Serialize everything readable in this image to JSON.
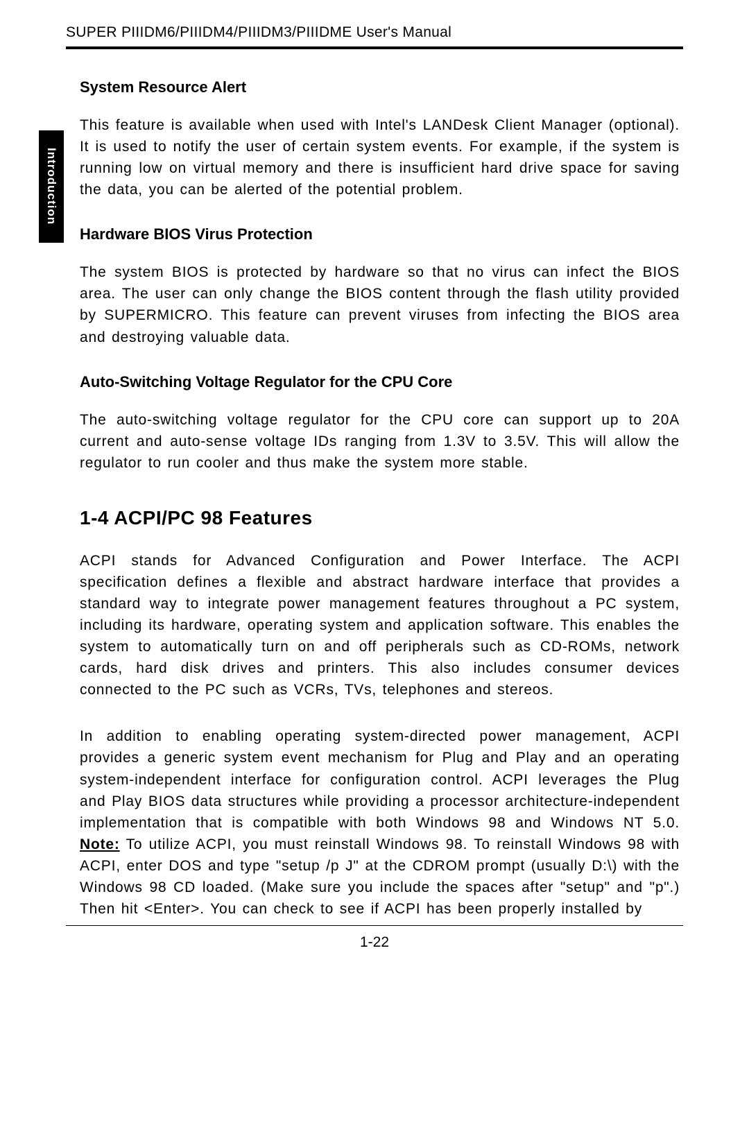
{
  "header": {
    "text": "SUPER PIIIDM6/PIIIDM4/PIIIDM3/PIIIDME User's Manual"
  },
  "sideTab": {
    "label": "Introduction"
  },
  "sections": [
    {
      "heading": "System Resource Alert",
      "body": "This feature is available when used with Intel's LANDesk Client Manager (optional).  It is used to notify the user of certain system events.  For example, if the system is running low on virtual memory and there is insufficient hard drive space for saving the data, you can be alerted of the potential problem."
    },
    {
      "heading": "Hardware BIOS Virus Protection",
      "body": "The system BIOS is protected by hardware so that no virus can infect the BIOS area.  The user can only change the BIOS content through the flash utility provided by SUPERMICRO.  This feature can prevent viruses from infecting the BIOS area and destroying valuable data."
    },
    {
      "heading": "Auto-Switching Voltage Regulator for the CPU Core",
      "body": "The auto-switching voltage regulator for the CPU core can support up to 20A current and auto-sense voltage IDs ranging from 1.3V to 3.5V.  This will allow the regulator to run cooler and thus make the system more stable."
    }
  ],
  "mainSection": {
    "title": "1-4  ACPI/PC 98 Features",
    "para1": "ACPI stands for Advanced Configuration and Power Interface.  The ACPI specification defines a flexible and abstract hardware interface that provides a standard way to integrate power management features throughout a PC system, including its hardware, operating system and application software.  This enables the system to automatically turn on and off peripherals such as CD-ROMs, network cards, hard disk drives and printers.  This also includes consumer devices connected to the PC such as VCRs, TVs, telephones and stereos.",
    "para2_before_note": "In addition to enabling operating system-directed power management, ACPI provides a generic system event mechanism for Plug and Play and an operating system-independent interface for configuration control.  ACPI leverages the Plug and Play BIOS data structures while providing a processor architecture-independent implementation that is compatible with both Windows 98 and Windows NT 5.0.  ",
    "note_label": "Note:",
    "para2_after_note": " To utilize ACPI, you must reinstall Windows 98.  To reinstall Windows 98 with ACPI, enter DOS and type \"setup /p J\" at the CDROM prompt (usually D:\\) with the Windows 98 CD loaded.  (Make sure you include the spaces after \"setup\" and \"p\".)  Then hit <Enter>.  You can check to see if ACPI has been properly installed by"
  },
  "pageNumber": "1-22"
}
